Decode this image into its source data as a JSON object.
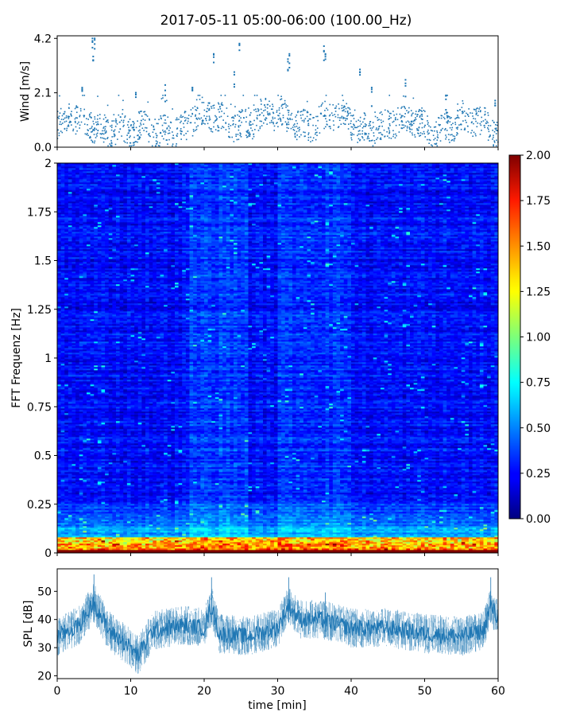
{
  "title": "2017-05-11 05:00-06:00 (100.00_Hz)",
  "chart_data": [
    {
      "type": "scatter",
      "ylabel": "Wind [m/s]",
      "xlim": [
        0,
        60
      ],
      "ylim": [
        0,
        4.3
      ],
      "yticks": [
        "0.0",
        "2.1",
        "4.2"
      ],
      "color": "#1f77b4",
      "baseline": 0.85,
      "gusts": [
        {
          "x": 4.8,
          "y": 4.2
        },
        {
          "x": 5.1,
          "y": 4.2
        },
        {
          "x": 3.4,
          "y": 2.3
        },
        {
          "x": 4.9,
          "y": 3.5
        },
        {
          "x": 10.7,
          "y": 2.1
        },
        {
          "x": 14.7,
          "y": 2.4
        },
        {
          "x": 18.4,
          "y": 2.3
        },
        {
          "x": 21.3,
          "y": 3.6
        },
        {
          "x": 24.8,
          "y": 4.0
        },
        {
          "x": 24.1,
          "y": 2.9
        },
        {
          "x": 31.4,
          "y": 3.4
        },
        {
          "x": 31.6,
          "y": 3.6
        },
        {
          "x": 36.3,
          "y": 3.9
        },
        {
          "x": 36.5,
          "y": 3.6
        },
        {
          "x": 41.2,
          "y": 3.0
        },
        {
          "x": 42.8,
          "y": 2.3
        },
        {
          "x": 47.4,
          "y": 2.6
        },
        {
          "x": 52.9,
          "y": 2.0
        },
        {
          "x": 59.6,
          "y": 1.8
        }
      ]
    },
    {
      "type": "heatmap",
      "ylabel": "FFT Frequenz [Hz]",
      "xlim": [
        0,
        60
      ],
      "ylim": [
        0,
        2
      ],
      "yticks": [
        "0",
        "0.25",
        "0.5",
        "0.75",
        "1",
        "1.25",
        "1.5",
        "1.75",
        "2"
      ],
      "colorbar": {
        "range": [
          0,
          2
        ],
        "ticks": [
          "0.00",
          "0.25",
          "0.50",
          "0.75",
          "1.00",
          "1.25",
          "1.50",
          "1.75",
          "2.00"
        ],
        "colormap": "jet"
      }
    },
    {
      "type": "line",
      "ylabel": "SPL [dB]",
      "xlabel": "time [min]",
      "xlim": [
        0,
        60
      ],
      "ylim": [
        19,
        58
      ],
      "xticks": [
        "0",
        "10",
        "20",
        "30",
        "40",
        "50",
        "60"
      ],
      "yticks": [
        "20",
        "30",
        "40",
        "50"
      ],
      "color": "#1f77b4",
      "envelope": [
        {
          "x": 0,
          "y": 34
        },
        {
          "x": 3,
          "y": 38
        },
        {
          "x": 5,
          "y": 46
        },
        {
          "x": 7,
          "y": 36
        },
        {
          "x": 10,
          "y": 30
        },
        {
          "x": 11,
          "y": 27
        },
        {
          "x": 13,
          "y": 36
        },
        {
          "x": 17,
          "y": 38
        },
        {
          "x": 20,
          "y": 37
        },
        {
          "x": 21,
          "y": 45
        },
        {
          "x": 22,
          "y": 35
        },
        {
          "x": 26,
          "y": 34
        },
        {
          "x": 30,
          "y": 37
        },
        {
          "x": 31.5,
          "y": 45
        },
        {
          "x": 33,
          "y": 40
        },
        {
          "x": 36,
          "y": 40
        },
        {
          "x": 40,
          "y": 37
        },
        {
          "x": 45,
          "y": 37
        },
        {
          "x": 50,
          "y": 35
        },
        {
          "x": 55,
          "y": 34
        },
        {
          "x": 58,
          "y": 36
        },
        {
          "x": 59,
          "y": 45
        },
        {
          "x": 60,
          "y": 40
        }
      ]
    }
  ]
}
